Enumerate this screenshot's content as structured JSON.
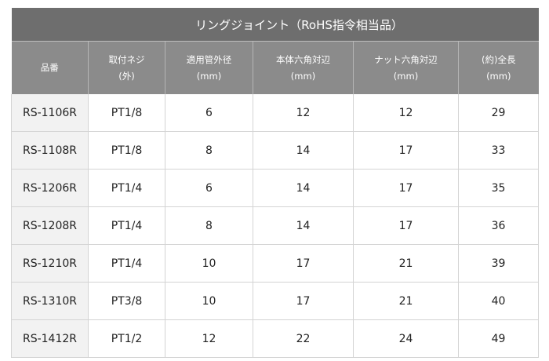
{
  "table": {
    "title": "リングジョイント（RoHS指令相当品）",
    "header": [
      [
        "品番"
      ],
      [
        "取付ネジ",
        "(外)"
      ],
      [
        "適用管外径",
        "(mm)"
      ],
      [
        "本体六角対辺",
        "(mm)"
      ],
      [
        "ナット六角対辺",
        "(mm)"
      ],
      [
        "(約)全長",
        "(mm)"
      ]
    ],
    "rows": [
      [
        "RS-1106R",
        "PT1/8",
        6,
        12,
        12,
        29
      ],
      [
        "RS-1108R",
        "PT1/8",
        8,
        14,
        17,
        33
      ],
      [
        "RS-1206R",
        "PT1/4",
        6,
        14,
        17,
        35
      ],
      [
        "RS-1208R",
        "PT1/4",
        8,
        14,
        17,
        36
      ],
      [
        "RS-1210R",
        "PT1/4",
        10,
        17,
        21,
        39
      ],
      [
        "RS-1310R",
        "PT3/8",
        10,
        17,
        21,
        40
      ],
      [
        "RS-1412R",
        "PT1/2",
        12,
        22,
        24,
        49
      ]
    ]
  }
}
